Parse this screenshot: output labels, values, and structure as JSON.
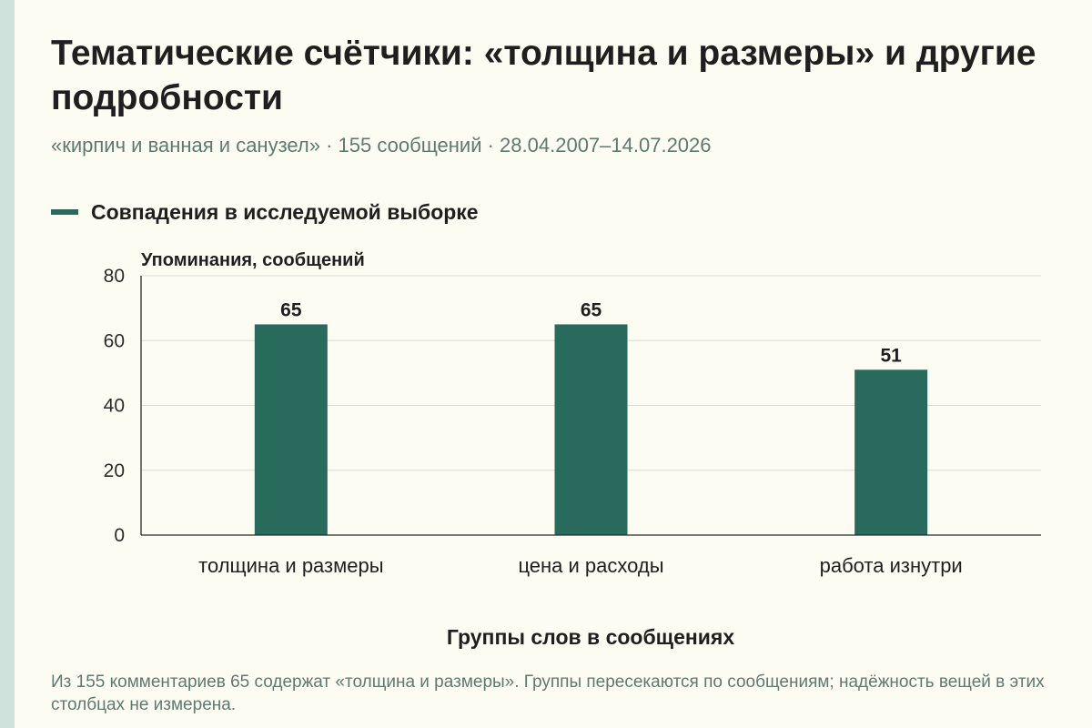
{
  "header": {
    "title": "Тематические счётчики: «толщина и размеры» и другие подробности",
    "subtitle": "«кирпич и ванная и санузел» · 155 сообщений · 28.04.2007–14.07.2026"
  },
  "legend": {
    "label": "Совпадения в исследуемой выборке",
    "color": "#286a5b"
  },
  "footnote": "Из 155 комментариев 65 содержат «толщина и размеры». Группы пересекаются по сообщениям; надёжность вещей в этих столбцах не измерена.",
  "chart_data": {
    "type": "bar",
    "categories": [
      "толщина и размеры",
      "цена и расходы",
      "работа изнутри"
    ],
    "series": [
      {
        "name": "Совпадения в исследуемой выборке",
        "values": [
          65,
          65,
          51
        ],
        "color": "#286a5b"
      }
    ],
    "data_labels": [
      "65",
      "65",
      "51"
    ],
    "ylabel": "Упоминания, сообщений",
    "xlabel": "Группы слов в сообщениях",
    "ylim": [
      0,
      80
    ],
    "yticks": [
      0,
      20,
      40,
      60,
      80
    ],
    "ytick_labels": [
      "0",
      "20",
      "40",
      "60",
      "80"
    ],
    "grid": true,
    "legend_position": "top-left"
  }
}
